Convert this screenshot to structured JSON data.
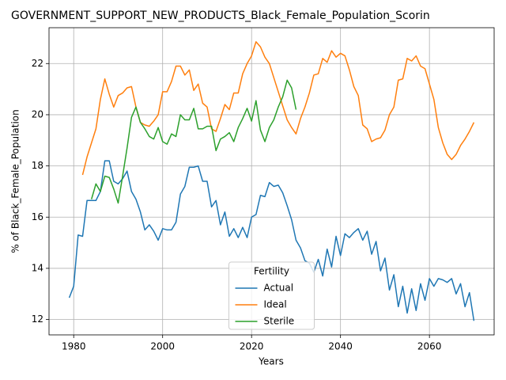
{
  "chart_data": {
    "type": "line",
    "title": "GOVERNMENT_SUPPORT_NEW_PRODUCTS_Black_Female_Population_Scorin",
    "x_label": "Years",
    "y_label": "% of Black_Female_Population",
    "legend_title": "Fertility",
    "legend": "lower center",
    "grid": true,
    "xlim": [
      1974.45,
      2074.55
    ],
    "xticks": [
      1980,
      2000,
      2020,
      2040,
      2060
    ],
    "ylim": [
      11.4,
      23.4
    ],
    "yticks": [
      12,
      14,
      16,
      18,
      20,
      22
    ],
    "x": [
      1979,
      1980,
      1981,
      1982,
      1983,
      1984,
      1985,
      1986,
      1987,
      1988,
      1989,
      1990,
      1991,
      1992,
      1993,
      1994,
      1995,
      1996,
      1997,
      1998,
      1999,
      2000,
      2001,
      2002,
      2003,
      2004,
      2005,
      2006,
      2007,
      2008,
      2009,
      2010,
      2011,
      2012,
      2013,
      2014,
      2015,
      2016,
      2017,
      2018,
      2019,
      2020,
      2021,
      2022,
      2023,
      2024,
      2025,
      2026,
      2027,
      2028,
      2029,
      2030,
      2031,
      2032,
      2033,
      2034,
      2035,
      2036,
      2037,
      2038,
      2039,
      2040,
      2041,
      2042,
      2043,
      2044,
      2045,
      2046,
      2047,
      2048,
      2049,
      2050,
      2051,
      2052,
      2053,
      2054,
      2055,
      2056,
      2057,
      2058,
      2059,
      2060,
      2061,
      2062,
      2063,
      2064,
      2065,
      2066,
      2067,
      2068,
      2069,
      2070
    ],
    "series": [
      {
        "name": "Actual",
        "color": "#1f77b4",
        "values": [
          12.85,
          13.3,
          15.3,
          15.25,
          16.65,
          16.65,
          16.65,
          17.0,
          18.2,
          18.2,
          17.4,
          17.3,
          17.5,
          17.8,
          17.0,
          16.7,
          16.2,
          15.5,
          15.7,
          15.45,
          15.1,
          15.55,
          15.5,
          15.5,
          15.8,
          16.9,
          17.2,
          17.95,
          17.95,
          18.0,
          17.4,
          17.4,
          16.4,
          16.65,
          15.7,
          16.2,
          15.25,
          15.55,
          15.2,
          15.6,
          15.2,
          16.0,
          16.1,
          16.85,
          16.8,
          17.35,
          17.2,
          17.25,
          16.95,
          16.45,
          15.9,
          15.1,
          14.8,
          14.3,
          14.2,
          13.85,
          14.35,
          13.7,
          14.75,
          14.05,
          15.25,
          14.5,
          15.35,
          15.2,
          15.4,
          15.55,
          15.1,
          15.45,
          14.55,
          15.05,
          13.9,
          14.4,
          13.15,
          13.75,
          12.5,
          13.3,
          12.25,
          13.2,
          12.35,
          13.4,
          12.75,
          13.6,
          13.3,
          13.6,
          13.55,
          13.45,
          13.6,
          13.0,
          13.4,
          12.5,
          13.05,
          11.95
        ]
      },
      {
        "name": "Ideal",
        "color": "#ff7f0e",
        "values": [
          null,
          null,
          null,
          17.65,
          18.35,
          18.9,
          19.45,
          20.6,
          21.4,
          20.8,
          20.3,
          20.75,
          20.85,
          21.05,
          21.1,
          20.3,
          19.7,
          19.6,
          19.55,
          19.75,
          20.0,
          20.9,
          20.9,
          21.3,
          21.9,
          21.9,
          21.55,
          21.75,
          20.95,
          21.2,
          20.45,
          20.3,
          19.45,
          19.35,
          19.85,
          20.4,
          20.2,
          20.85,
          20.85,
          21.6,
          22.0,
          22.3,
          22.85,
          22.65,
          22.25,
          22.0,
          21.45,
          20.9,
          20.35,
          19.8,
          19.5,
          19.25,
          19.85,
          20.3,
          20.85,
          21.55,
          21.6,
          22.2,
          22.05,
          22.5,
          22.25,
          22.4,
          22.3,
          21.75,
          21.1,
          20.75,
          19.6,
          19.45,
          18.95,
          19.05,
          19.1,
          19.4,
          20.0,
          20.3,
          21.35,
          21.4,
          22.2,
          22.1,
          22.3,
          21.9,
          21.8,
          21.2,
          20.6,
          19.5,
          18.9,
          18.45,
          18.25,
          18.45,
          18.8,
          19.05,
          19.35,
          19.7
        ]
      },
      {
        "name": "Sterile",
        "color": "#2ca02c",
        "values": [
          null,
          null,
          null,
          null,
          null,
          16.7,
          17.3,
          17.0,
          17.6,
          17.55,
          17.1,
          16.55,
          17.6,
          18.7,
          19.9,
          20.3,
          19.7,
          19.45,
          19.15,
          19.05,
          19.5,
          18.95,
          18.85,
          19.25,
          19.15,
          20.0,
          19.8,
          19.8,
          20.25,
          19.45,
          19.45,
          19.55,
          19.55,
          18.6,
          19.05,
          19.15,
          19.3,
          18.95,
          19.5,
          19.85,
          20.25,
          19.75,
          20.55,
          19.4,
          18.95,
          19.5,
          19.8,
          20.3,
          20.7,
          21.35,
          21.05,
          20.2,
          null,
          null,
          null,
          null,
          null,
          null,
          null,
          null,
          null,
          null,
          null,
          null,
          null,
          null,
          null,
          null,
          null,
          null,
          null,
          null,
          null,
          null,
          null,
          null,
          null,
          null,
          null,
          null,
          null,
          null,
          null,
          null,
          null,
          null,
          null,
          null,
          null,
          null,
          null,
          null
        ]
      }
    ]
  }
}
